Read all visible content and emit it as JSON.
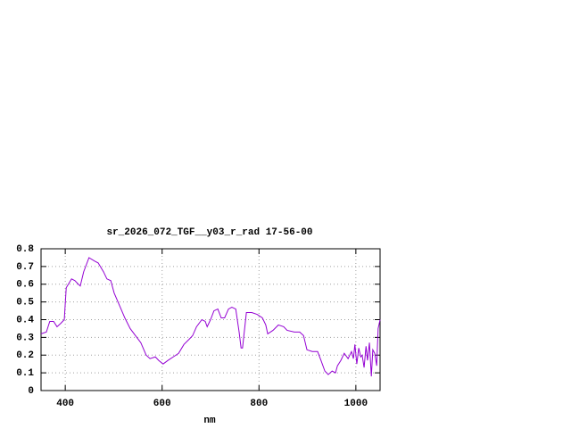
{
  "chart_data": {
    "type": "line",
    "title": "sr_2026_072_TGF__y03_r_rad 17-56-00",
    "x_label": "nm",
    "xlim": [
      350,
      1050
    ],
    "xticks": [
      400,
      600,
      800,
      1000
    ],
    "ylim": [
      0,
      0.8
    ],
    "yticks": [
      0,
      0.1,
      0.2,
      0.3,
      0.4,
      0.5,
      0.6,
      0.7,
      0.8
    ],
    "grid": true,
    "series": [
      {
        "color": "#9400d3",
        "x": [
          350,
          361,
          368,
          376,
          383,
          391,
          398,
          402,
          413,
          420,
          427,
          431,
          438,
          449,
          461,
          468,
          479,
          486,
          494,
          501,
          512,
          523,
          534,
          545,
          556,
          567,
          575,
          586,
          593,
          602,
          612,
          623,
          634,
          645,
          656,
          663,
          671,
          682,
          689,
          693,
          700,
          707,
          715,
          722,
          729,
          737,
          744,
          752,
          759,
          763,
          766,
          774,
          785,
          796,
          807,
          814,
          818,
          829,
          840,
          851,
          858,
          873,
          884,
          892,
          899,
          910,
          921,
          928,
          936,
          943,
          951,
          958,
          962,
          969,
          976,
          984,
          991,
          995,
          998,
          1002,
          1006,
          1010,
          1013,
          1017,
          1021,
          1024,
          1028,
          1032,
          1035,
          1039,
          1043,
          1046,
          1050
        ],
        "values": [
          0.32,
          0.33,
          0.39,
          0.39,
          0.36,
          0.38,
          0.4,
          0.58,
          0.63,
          0.62,
          0.6,
          0.59,
          0.67,
          0.75,
          0.73,
          0.72,
          0.67,
          0.63,
          0.62,
          0.55,
          0.48,
          0.41,
          0.35,
          0.31,
          0.27,
          0.2,
          0.18,
          0.19,
          0.17,
          0.15,
          0.17,
          0.19,
          0.21,
          0.26,
          0.29,
          0.31,
          0.36,
          0.4,
          0.39,
          0.36,
          0.4,
          0.45,
          0.46,
          0.41,
          0.41,
          0.46,
          0.47,
          0.46,
          0.33,
          0.24,
          0.24,
          0.44,
          0.44,
          0.43,
          0.41,
          0.37,
          0.32,
          0.34,
          0.37,
          0.36,
          0.34,
          0.33,
          0.33,
          0.31,
          0.23,
          0.22,
          0.22,
          0.17,
          0.11,
          0.09,
          0.11,
          0.1,
          0.14,
          0.17,
          0.21,
          0.18,
          0.22,
          0.18,
          0.26,
          0.15,
          0.24,
          0.19,
          0.2,
          0.13,
          0.25,
          0.17,
          0.27,
          0.08,
          0.23,
          0.21,
          0.14,
          0.35,
          0.4
        ]
      }
    ]
  }
}
